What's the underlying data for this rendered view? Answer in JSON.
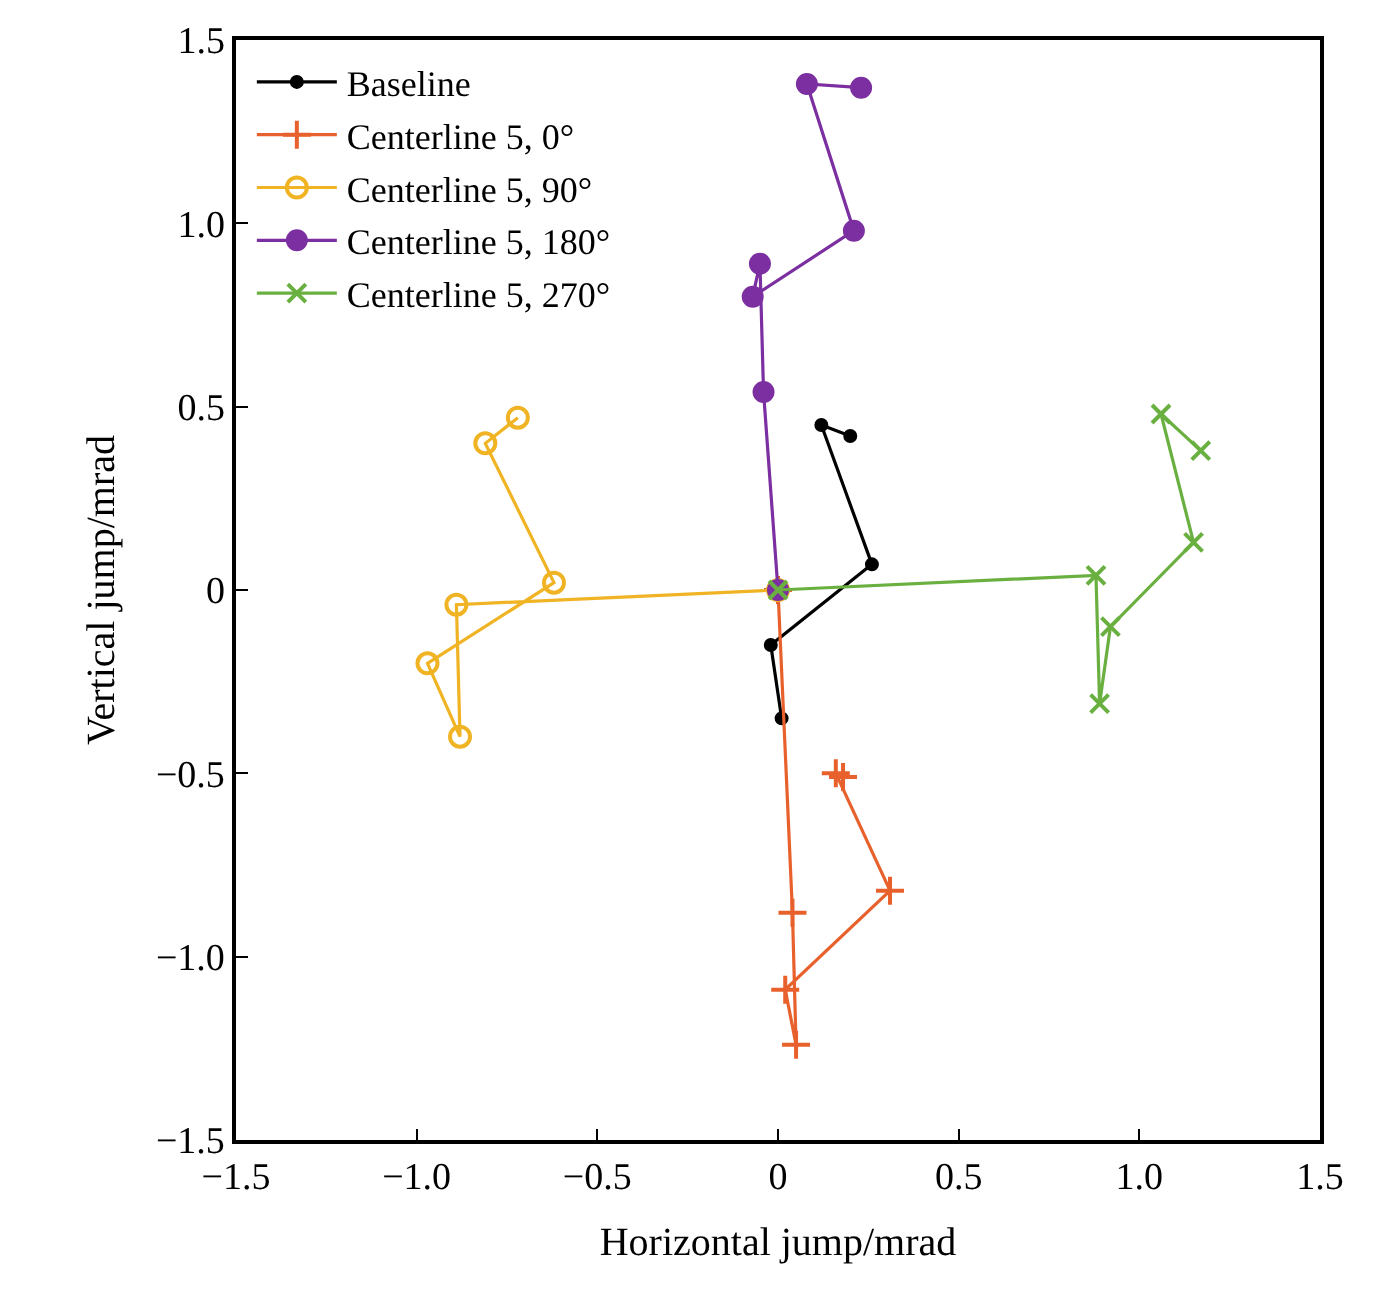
{
  "chart_data": {
    "type": "line",
    "xlabel": "Horizontal jump/mrad",
    "ylabel": "Vertical jump/mrad",
    "xlim": [
      -1.5,
      1.5
    ],
    "ylim": [
      -1.5,
      1.5
    ],
    "xticks": [
      {
        "value": -1.5,
        "label": "−1.5"
      },
      {
        "value": -1.0,
        "label": "−1.0"
      },
      {
        "value": -0.5,
        "label": "−0.5"
      },
      0,
      0.5,
      {
        "value": 1.0,
        "label": "1.0"
      },
      1.5
    ],
    "yticks": [
      {
        "value": -1.5,
        "label": "−1.5"
      },
      {
        "value": -1.0,
        "label": "−1.0"
      },
      {
        "value": -0.5,
        "label": "−0.5"
      },
      0,
      0.5,
      {
        "value": 1.0,
        "label": "1.0"
      },
      1.5
    ],
    "legend": "top left",
    "series": [
      {
        "name": "Baseline",
        "color": "#000000",
        "marker": "dot",
        "x": [
          0.2,
          0.12,
          0.26,
          -0.02,
          0.01
        ],
        "values": [
          0.42,
          0.45,
          0.07,
          -0.15,
          -0.35
        ]
      },
      {
        "name": "Centerline 5, 0°",
        "color": "#e8612c",
        "marker": "cross",
        "x": [
          0,
          0.04,
          0.05,
          0.02,
          0.31,
          0.16,
          0.18
        ],
        "values": [
          0,
          -0.88,
          -1.24,
          -1.09,
          -0.82,
          -0.5,
          -0.51
        ]
      },
      {
        "name": "Centerline 5, 90°",
        "color": "#f0b323",
        "marker": "circle-open",
        "x": [
          0,
          -0.89,
          -0.88,
          -0.97,
          -0.62,
          -0.81,
          -0.72
        ],
        "values": [
          0,
          -0.04,
          -0.4,
          -0.2,
          0.02,
          0.4,
          0.47
        ]
      },
      {
        "name": "Centerline 5, 180°",
        "color": "#7b2fa0",
        "marker": "circle",
        "x": [
          0,
          -0.04,
          -0.05,
          -0.07,
          0.21,
          0.08,
          0.23
        ],
        "values": [
          0,
          0.54,
          0.89,
          0.8,
          0.98,
          1.38,
          1.37
        ]
      },
      {
        "name": "Centerline 5, 270°",
        "color": "#6ab040",
        "marker": "x",
        "x": [
          0,
          0.88,
          0.89,
          0.92,
          1.15,
          1.06,
          1.17
        ],
        "values": [
          0,
          0.04,
          -0.31,
          -0.1,
          0.13,
          0.48,
          0.38
        ]
      }
    ]
  }
}
